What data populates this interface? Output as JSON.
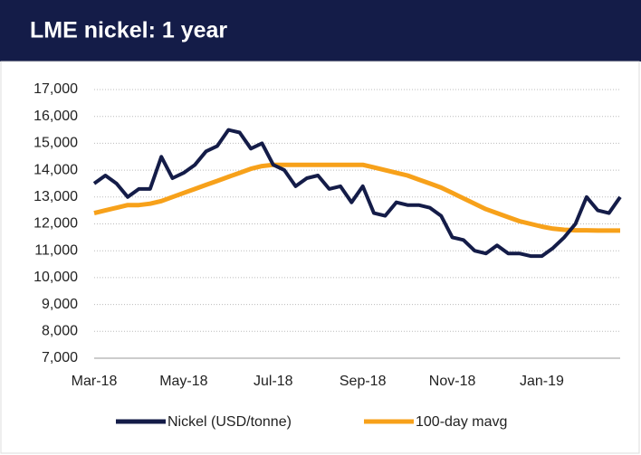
{
  "chart_data": {
    "type": "line",
    "title": "LME nickel: 1 year",
    "categories": [
      "Mar-18",
      null,
      null,
      null,
      null,
      null,
      null,
      null,
      "May-18",
      null,
      null,
      null,
      null,
      null,
      null,
      null,
      "Jul-18",
      null,
      null,
      null,
      null,
      null,
      null,
      null,
      "Sep-18",
      null,
      null,
      null,
      null,
      null,
      null,
      null,
      "Nov-18",
      null,
      null,
      null,
      null,
      null,
      null,
      null,
      "Jan-19",
      null,
      null,
      null,
      null,
      null,
      null,
      null
    ],
    "series": [
      {
        "name": "Nickel (USD/tonne)",
        "color": "#141c48",
        "values": [
          13500,
          13800,
          13500,
          13000,
          13300,
          13300,
          14500,
          13700,
          13900,
          14200,
          14700,
          14900,
          15500,
          15400,
          14800,
          15000,
          14200,
          14000,
          13400,
          13700,
          13800,
          13300,
          13400,
          12800,
          13400,
          12400,
          12300,
          12800,
          12700,
          12700,
          12600,
          12300,
          11500,
          11400,
          11000,
          10900,
          11200,
          10900,
          10900,
          10800,
          10800,
          11100,
          11500,
          12000,
          13000,
          12500,
          12400,
          13000
        ]
      },
      {
        "name": "100-day mavg",
        "color": "#f7a11a",
        "values": [
          12400,
          12500,
          12600,
          12700,
          12700,
          12750,
          12850,
          13000,
          13150,
          13300,
          13450,
          13600,
          13750,
          13900,
          14050,
          14150,
          14200,
          14200,
          14200,
          14200,
          14200,
          14200,
          14200,
          14200,
          14200,
          14100,
          14000,
          13900,
          13800,
          13650,
          13500,
          13350,
          13150,
          12950,
          12750,
          12550,
          12400,
          12250,
          12100,
          12000,
          11900,
          11820,
          11780,
          11760,
          11760,
          11750,
          11750,
          11750
        ]
      }
    ],
    "ylim": [
      7000,
      17000
    ],
    "yticks": [
      {
        "value": 7000,
        "label": "7,000"
      },
      {
        "value": 8000,
        "label": "8,000"
      },
      {
        "value": 9000,
        "label": "9,000"
      },
      {
        "value": 10000,
        "label": "10,000"
      },
      {
        "value": 11000,
        "label": "11,000"
      },
      {
        "value": 12000,
        "label": "12,000"
      },
      {
        "value": 13000,
        "label": "13,000"
      },
      {
        "value": 14000,
        "label": "14,000"
      },
      {
        "value": 15000,
        "label": "15,000"
      },
      {
        "value": 16000,
        "label": "16,000"
      },
      {
        "value": 17000,
        "label": "17,000"
      }
    ],
    "grid": true
  }
}
